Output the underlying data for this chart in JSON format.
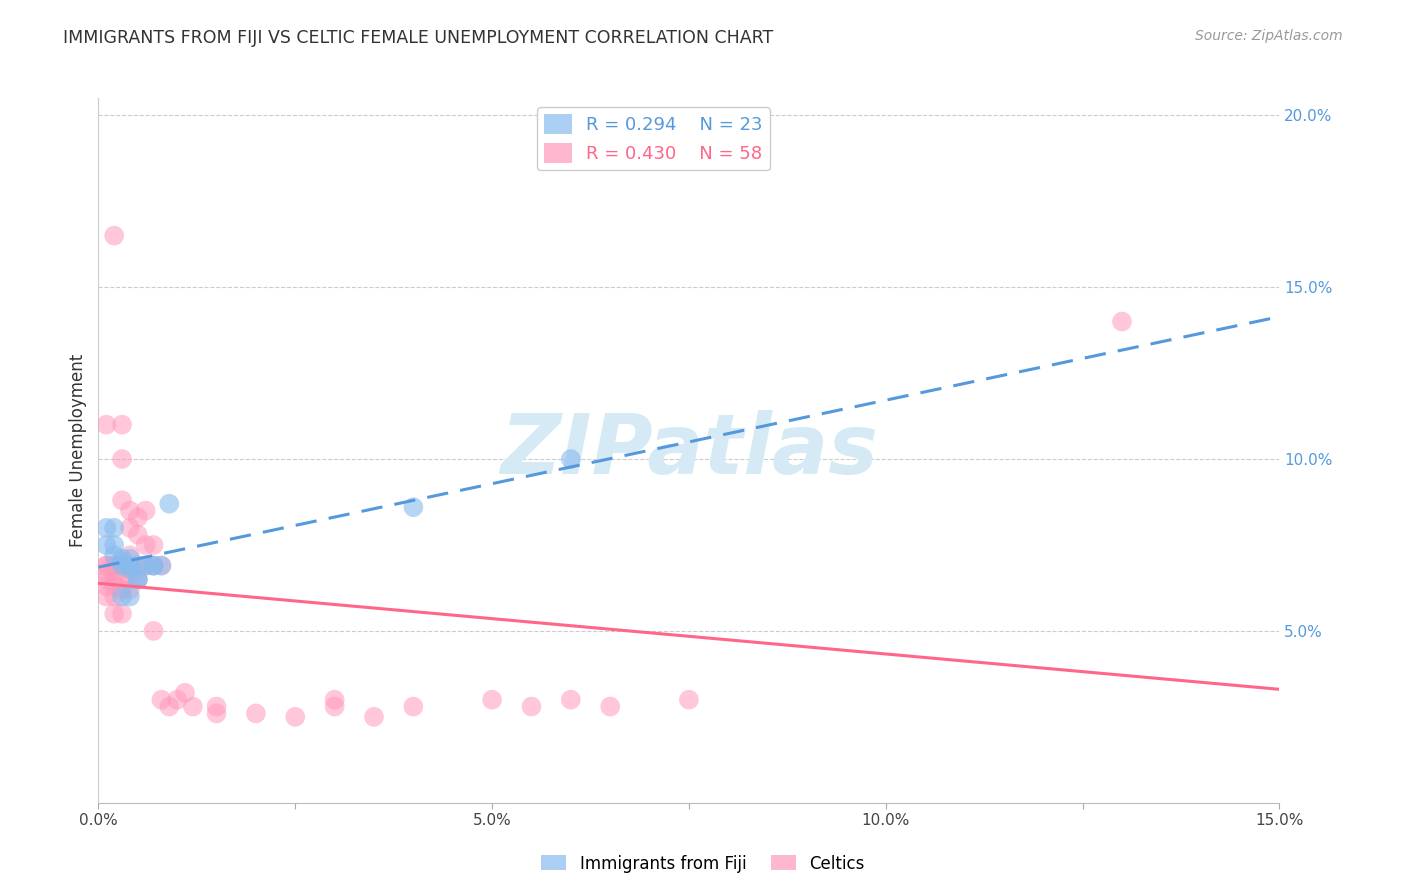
{
  "title": "IMMIGRANTS FROM FIJI VS CELTIC FEMALE UNEMPLOYMENT CORRELATION CHART",
  "source": "Source: ZipAtlas.com",
  "ylabel": "Female Unemployment",
  "x_min": 0.0,
  "x_max": 0.15,
  "y_min": 0.0,
  "y_max": 0.205,
  "fiji_R": 0.294,
  "fiji_N": 23,
  "celtic_R": 0.43,
  "celtic_N": 58,
  "fiji_color": "#88BBEE",
  "celtic_color": "#FF99BB",
  "background_color": "#FFFFFF",
  "grid_color": "#CCCCCC",
  "watermark_text": "ZIPatlas",
  "watermark_color": "#D5EAF5",
  "fiji_x": [
    0.001,
    0.001,
    0.002,
    0.002,
    0.002,
    0.003,
    0.003,
    0.003,
    0.003,
    0.004,
    0.004,
    0.004,
    0.004,
    0.005,
    0.005,
    0.005,
    0.006,
    0.007,
    0.007,
    0.008,
    0.009,
    0.04,
    0.06
  ],
  "fiji_y": [
    0.075,
    0.08,
    0.072,
    0.075,
    0.08,
    0.069,
    0.07,
    0.071,
    0.06,
    0.068,
    0.069,
    0.071,
    0.06,
    0.069,
    0.065,
    0.065,
    0.069,
    0.069,
    0.069,
    0.069,
    0.087,
    0.086,
    0.1
  ],
  "celtic_x": [
    0.001,
    0.001,
    0.001,
    0.001,
    0.001,
    0.001,
    0.001,
    0.002,
    0.002,
    0.002,
    0.002,
    0.002,
    0.002,
    0.002,
    0.002,
    0.003,
    0.003,
    0.003,
    0.003,
    0.003,
    0.003,
    0.003,
    0.004,
    0.004,
    0.004,
    0.004,
    0.004,
    0.004,
    0.005,
    0.005,
    0.005,
    0.005,
    0.006,
    0.006,
    0.006,
    0.007,
    0.007,
    0.007,
    0.008,
    0.008,
    0.009,
    0.01,
    0.011,
    0.012,
    0.015,
    0.015,
    0.02,
    0.025,
    0.03,
    0.03,
    0.035,
    0.04,
    0.05,
    0.055,
    0.06,
    0.065,
    0.075,
    0.13
  ],
  "celtic_y": [
    0.06,
    0.063,
    0.065,
    0.067,
    0.069,
    0.069,
    0.11,
    0.055,
    0.06,
    0.063,
    0.065,
    0.067,
    0.069,
    0.069,
    0.165,
    0.055,
    0.062,
    0.065,
    0.069,
    0.088,
    0.1,
    0.11,
    0.062,
    0.065,
    0.068,
    0.072,
    0.08,
    0.085,
    0.065,
    0.068,
    0.078,
    0.083,
    0.069,
    0.075,
    0.085,
    0.05,
    0.069,
    0.075,
    0.03,
    0.069,
    0.028,
    0.03,
    0.032,
    0.028,
    0.026,
    0.028,
    0.026,
    0.025,
    0.028,
    0.03,
    0.025,
    0.028,
    0.03,
    0.028,
    0.03,
    0.028,
    0.03,
    0.14
  ]
}
